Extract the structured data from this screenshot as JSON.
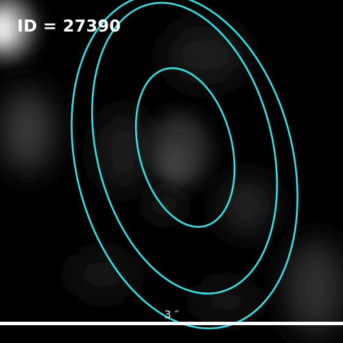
{
  "cutout": {
    "id_label": "ID = 27390",
    "scale_bar_label": "3 ″",
    "contour_color": "#2ee6ea",
    "contour_count": 3,
    "scale_bar_color": "#ffffff",
    "background_color": "#000000"
  }
}
